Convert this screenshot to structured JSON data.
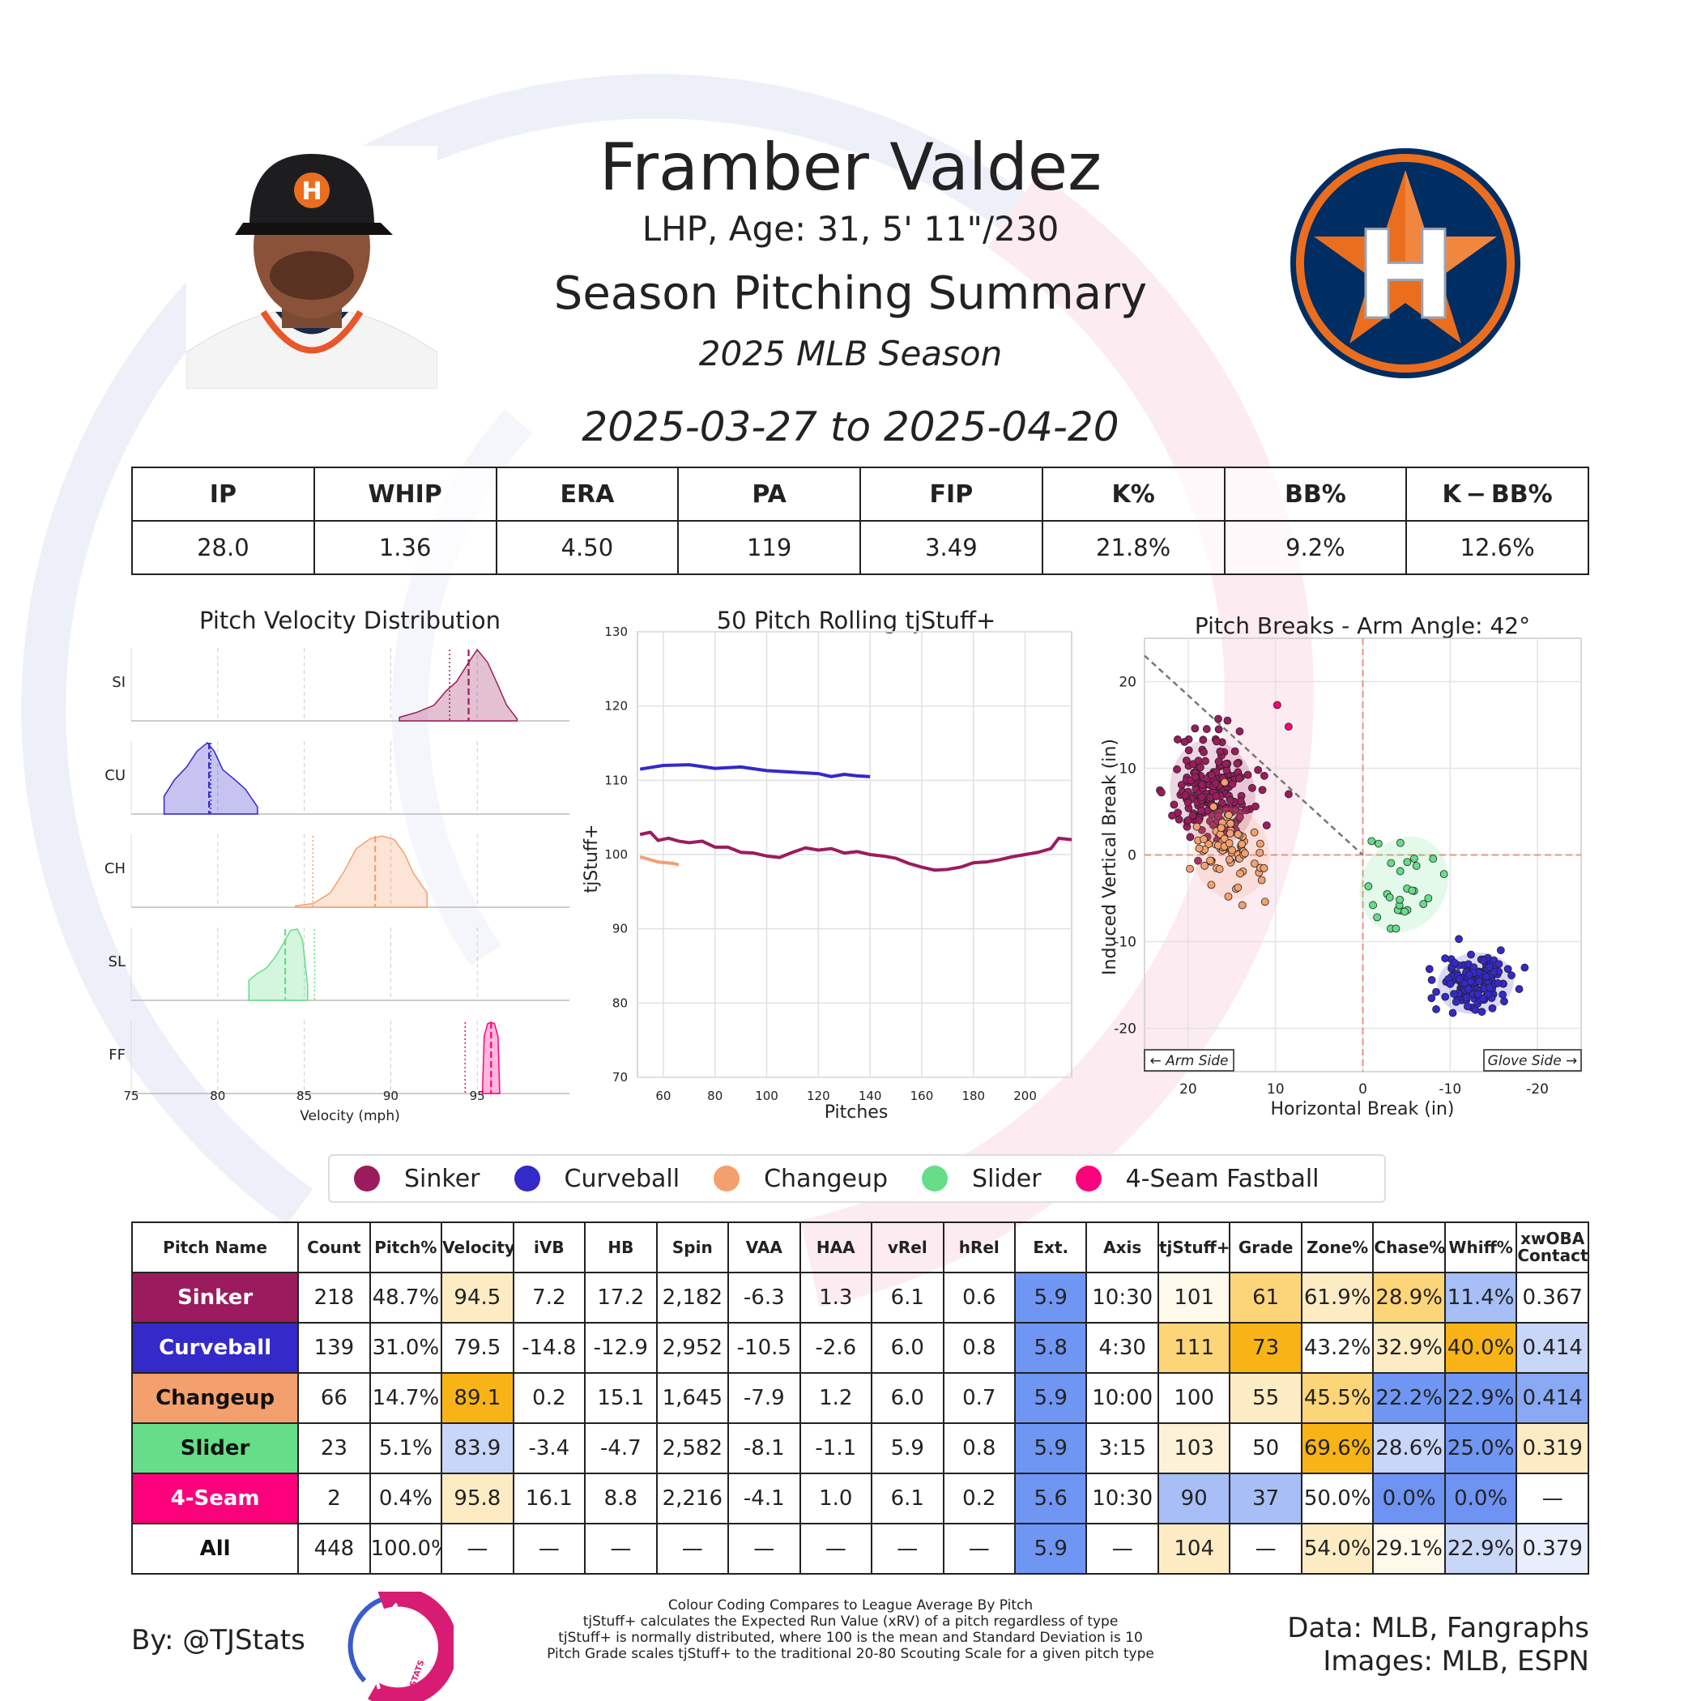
{
  "header": {
    "name": "Framber Valdez",
    "bio": "LHP, Age: 31, 5' 11\"/230",
    "title": "Season Pitching Summary",
    "season": "2025 MLB Season",
    "date_range": "2025-03-27 to 2025-04-20"
  },
  "summary": {
    "headers": [
      "IP",
      "WHIP",
      "ERA",
      "PA",
      "FIP",
      "K%",
      "BB%",
      "K − BB%"
    ],
    "values": [
      "28.0",
      "1.36",
      "4.50",
      "119",
      "3.49",
      "21.8%",
      "9.2%",
      "12.6%"
    ]
  },
  "colors": {
    "Sinker": "#9b1c5e",
    "Curveball": "#3429c9",
    "Changeup": "#f4a06e",
    "Slider": "#66dd88",
    "4-Seam Fastball": "#ff007d",
    "heat_high": "#f8b417",
    "heat_mid_high": "#fcd579",
    "heat_light_high": "#fdecc3",
    "heat_neutral": "#ffffff",
    "heat_light_low": "#c8d6f8",
    "heat_mid_low": "#a7bef6",
    "heat_low": "#7096f3"
  },
  "chart_data": [
    {
      "type": "area",
      "title": "Pitch Velocity Distribution",
      "xlabel": "Velocity (mph)",
      "xlim": [
        75,
        100
      ],
      "xticks": [
        "75",
        "80",
        "85",
        "90",
        "95"
      ],
      "series": [
        {
          "name": "SI",
          "color": "#9b1c5e",
          "mean": 94.5,
          "league_mean": 93.4,
          "x": [
            90.5,
            91.5,
            92.5,
            93.2,
            93.8,
            94.5,
            95.0,
            95.6,
            96.2,
            96.7,
            97.3
          ],
          "y": [
            0.05,
            0.12,
            0.22,
            0.42,
            0.55,
            0.82,
            1.0,
            0.82,
            0.5,
            0.22,
            0.03
          ]
        },
        {
          "name": "CU",
          "color": "#3429c9",
          "mean": 79.5,
          "league_mean": 79.6,
          "x": [
            76.9,
            77.5,
            78.2,
            78.8,
            79.4,
            79.8,
            80.3,
            81.0,
            81.6,
            82.3
          ],
          "y": [
            0.25,
            0.48,
            0.66,
            0.88,
            1.0,
            0.88,
            0.62,
            0.48,
            0.35,
            0.1
          ]
        },
        {
          "name": "CH",
          "color": "#f4a06e",
          "mean": 89.1,
          "league_mean": 85.5,
          "x": [
            84.5,
            85.5,
            86.5,
            87.3,
            88.0,
            88.8,
            89.5,
            90.2,
            90.8,
            91.3,
            92.1
          ],
          "y": [
            0.02,
            0.05,
            0.2,
            0.5,
            0.82,
            0.96,
            1.0,
            0.95,
            0.75,
            0.48,
            0.2
          ]
        },
        {
          "name": "SL",
          "color": "#66dd88",
          "mean": 83.9,
          "league_mean": 85.6,
          "x": [
            81.8,
            82.3,
            82.8,
            83.3,
            83.8,
            84.2,
            84.6,
            84.9,
            85.2
          ],
          "y": [
            0.28,
            0.38,
            0.45,
            0.6,
            0.8,
            0.98,
            1.0,
            0.85,
            0.2
          ]
        },
        {
          "name": "FF",
          "color": "#ff007d",
          "mean": 95.8,
          "league_mean": 94.3,
          "x": [
            95.3,
            95.4,
            95.6,
            95.8,
            96.0,
            96.2,
            96.3
          ],
          "y": [
            0.0,
            0.8,
            0.98,
            1.0,
            0.98,
            0.8,
            0.0
          ]
        }
      ]
    },
    {
      "type": "line",
      "title": "50 Pitch Rolling tjStuff+",
      "xlabel": "Pitches",
      "ylabel": "tjStuff+",
      "xlim": [
        50,
        218
      ],
      "ylim": [
        70,
        130
      ],
      "xticks": [
        "60",
        "80",
        "100",
        "120",
        "140",
        "160",
        "180",
        "200"
      ],
      "yticks": [
        "70",
        "80",
        "90",
        "100",
        "110",
        "120",
        "130"
      ],
      "series": [
        {
          "name": "Sinker",
          "color": "#9b1c5e",
          "x": [
            51,
            55,
            58,
            62,
            66,
            70,
            75,
            80,
            85,
            90,
            95,
            100,
            105,
            110,
            115,
            120,
            125,
            130,
            135,
            140,
            145,
            150,
            155,
            160,
            165,
            170,
            175,
            180,
            185,
            190,
            195,
            200,
            205,
            210,
            213,
            218
          ],
          "y": [
            102.7,
            103.0,
            101.9,
            102.2,
            101.8,
            101.6,
            101.8,
            101.0,
            101.0,
            100.3,
            100.2,
            99.8,
            99.6,
            100.3,
            100.9,
            100.6,
            100.8,
            100.2,
            100.4,
            100.0,
            99.8,
            99.5,
            98.8,
            98.3,
            97.9,
            98.0,
            98.3,
            98.9,
            99.0,
            99.3,
            99.7,
            100.0,
            100.3,
            100.8,
            102.2,
            102.0
          ]
        },
        {
          "name": "Curveball",
          "color": "#3429c9",
          "x": [
            51,
            60,
            70,
            80,
            90,
            100,
            110,
            120,
            125,
            130,
            135,
            140
          ],
          "y": [
            111.5,
            112.0,
            112.1,
            111.6,
            111.8,
            111.3,
            111.1,
            110.9,
            110.5,
            110.8,
            110.6,
            110.5
          ]
        },
        {
          "name": "Changeup",
          "color": "#f4a06e",
          "x": [
            51,
            55,
            58,
            61,
            64,
            66
          ],
          "y": [
            99.7,
            99.3,
            99.0,
            98.9,
            98.8,
            98.6
          ]
        }
      ]
    },
    {
      "type": "scatter",
      "title": "Pitch Breaks - Arm Angle: 42°",
      "xlabel": "Horizontal Break (in)",
      "ylabel": "Induced Vertical Break (in)",
      "xlim": [
        25,
        -25
      ],
      "ylim": [
        -25,
        25
      ],
      "xticks": [
        "20",
        "10",
        "0",
        "-10",
        "-20"
      ],
      "yticks": [
        "20",
        "10",
        "0",
        "-10",
        "-20"
      ],
      "annotations": {
        "arm_side": "← Arm Side",
        "glove_side": "Glove Side →"
      },
      "series": [
        {
          "name": "Sinker",
          "color": "#9b1c5e",
          "center": [
            17.2,
            7.2
          ],
          "spread": [
            2.2,
            2.8
          ],
          "count": 218,
          "outliers": [
            [
              15.5,
              15.5
            ],
            [
              16.5,
              14.5
            ],
            [
              12,
              9.8
            ],
            [
              11.5,
              7.5
            ],
            [
              20,
              4
            ]
          ]
        },
        {
          "name": "Curveball",
          "color": "#3429c9",
          "center": [
            -12.9,
            -14.8
          ],
          "spread": [
            2.0,
            1.6
          ],
          "count": 139,
          "outliers": [
            [
              -11,
              -9.7
            ],
            [
              -8.4,
              -17.8
            ],
            [
              -15.8,
              -11
            ]
          ]
        },
        {
          "name": "Changeup",
          "color": "#f4a06e",
          "center": [
            15.1,
            0.2
          ],
          "spread": [
            2.0,
            2.4
          ],
          "count": 66,
          "outliers": [
            [
              19.8,
              -1.6
            ],
            [
              13.8,
              -5.8
            ],
            [
              11.2,
              -5.4
            ],
            [
              15.4,
              -4.8
            ]
          ]
        },
        {
          "name": "Slider",
          "color": "#66dd88",
          "center": [
            -4.7,
            -3.4
          ],
          "spread": [
            2.2,
            2.6
          ],
          "count": 23,
          "outliers": [
            [
              -1.0,
              1.6
            ],
            [
              -1.8,
              1.3
            ],
            [
              -3.2,
              -8.5
            ],
            [
              -3.8,
              -8.5
            ],
            [
              -7.5,
              -5
            ]
          ]
        },
        {
          "name": "4-Seam Fastball",
          "color": "#ff007d",
          "points": [
            [
              9.8,
              17.3
            ],
            [
              8.5,
              14.8
            ]
          ]
        }
      ]
    }
  ],
  "legend": [
    "Sinker",
    "Curveball",
    "Changeup",
    "Slider",
    "4-Seam Fastball"
  ],
  "pitch_table": {
    "headers": [
      "Pitch Name",
      "Count",
      "Pitch%",
      "Velocity",
      "iVB",
      "HB",
      "Spin",
      "VAA",
      "HAA",
      "vRel",
      "hRel",
      "Ext.",
      "Axis",
      "tjStuff+",
      "Grade",
      "Zone%",
      "Chase%",
      "Whiff%",
      "xwOBA Contact"
    ],
    "rows": [
      {
        "name": "Sinker",
        "color": "#9b1c5e",
        "text": "#ffffff",
        "cells": [
          "218",
          "48.7%",
          "94.5",
          "7.2",
          "17.2",
          "2,182",
          "-6.3",
          "1.3",
          "6.1",
          "0.6",
          "5.9",
          "10:30",
          "101",
          "61",
          "61.9%",
          "28.9%",
          "11.4%",
          "0.367"
        ],
        "heat": [
          "",
          "",
          "#fdecc3",
          "",
          "",
          "",
          "",
          "",
          "",
          "",
          "#7096f3",
          "",
          "#fff9eb",
          "#fcd579",
          "#fdecc3",
          "#fcd579",
          "#a7bef6",
          ""
        ]
      },
      {
        "name": "Curveball",
        "color": "#3429c9",
        "text": "#ffffff",
        "cells": [
          "139",
          "31.0%",
          "79.5",
          "-14.8",
          "-12.9",
          "2,952",
          "-10.5",
          "-2.6",
          "6.0",
          "0.8",
          "5.8",
          "4:30",
          "111",
          "73",
          "43.2%",
          "32.9%",
          "40.0%",
          "0.414"
        ],
        "heat": [
          "",
          "",
          "",
          "",
          "",
          "",
          "",
          "",
          "",
          "",
          "#7096f3",
          "",
          "#fcd579",
          "#f8b417",
          "",
          "#fdecc3",
          "#f8b417",
          "#c8d6f8"
        ]
      },
      {
        "name": "Changeup",
        "color": "#f4a06e",
        "text": "#111111",
        "cells": [
          "66",
          "14.7%",
          "89.1",
          "0.2",
          "15.1",
          "1,645",
          "-7.9",
          "1.2",
          "6.0",
          "0.7",
          "5.9",
          "10:00",
          "100",
          "55",
          "45.5%",
          "22.2%",
          "22.9%",
          "0.414"
        ],
        "heat": [
          "",
          "",
          "#f8b417",
          "",
          "",
          "",
          "",
          "",
          "",
          "",
          "#7096f3",
          "",
          "",
          "#fdecc3",
          "#fcd579",
          "#7096f3",
          "#7096f3",
          "#8aa9f4"
        ]
      },
      {
        "name": "Slider",
        "color": "#66dd88",
        "text": "#111111",
        "cells": [
          "23",
          "5.1%",
          "83.9",
          "-3.4",
          "-4.7",
          "2,582",
          "-8.1",
          "-1.1",
          "5.9",
          "0.8",
          "5.9",
          "3:15",
          "103",
          "50",
          "69.6%",
          "28.6%",
          "25.0%",
          "0.319"
        ],
        "heat": [
          "",
          "",
          "#c8d6f8",
          "",
          "",
          "",
          "",
          "",
          "",
          "",
          "#7096f3",
          "",
          "#fdf2d8",
          "",
          "#f8b417",
          "#c8d6f8",
          "#7096f3",
          "#fdecc3"
        ]
      },
      {
        "name": "4-Seam",
        "color": "#ff007d",
        "text": "#ffffff",
        "cells": [
          "2",
          "0.4%",
          "95.8",
          "16.1",
          "8.8",
          "2,216",
          "-4.1",
          "1.0",
          "6.1",
          "0.2",
          "5.6",
          "10:30",
          "90",
          "37",
          "50.0%",
          "0.0%",
          "0.0%",
          "—"
        ],
        "heat": [
          "",
          "",
          "#fdecc3",
          "",
          "",
          "",
          "",
          "",
          "",
          "",
          "#7096f3",
          "",
          "#a7bef6",
          "#a7bef6",
          "",
          "#6e93f2",
          "#6e93f2",
          ""
        ]
      },
      {
        "name": "All",
        "color": "#ffffff",
        "text": "#111111",
        "cells": [
          "448",
          "100.0%",
          "—",
          "—",
          "—",
          "—",
          "—",
          "—",
          "—",
          "—",
          "5.9",
          "—",
          "104",
          "—",
          "54.0%",
          "29.1%",
          "22.9%",
          "0.379"
        ],
        "heat": [
          "",
          "",
          "",
          "",
          "",
          "",
          "",
          "",
          "",
          "",
          "#7096f3",
          "",
          "#fdecc3",
          "",
          "#fdecc3",
          "#fff9eb",
          "#c8d6f8",
          "#e8eefb"
        ]
      }
    ]
  },
  "footer": {
    "by": "By: @TJStats",
    "logo_text": "STATS",
    "notes": [
      "Colour Coding Compares to League Average By Pitch",
      "tjStuff+ calculates the Expected Run Value (xRV) of a pitch regardless of type",
      "tjStuff+ is normally distributed, where 100 is the mean and Standard Deviation is 10",
      "Pitch Grade scales tjStuff+ to the traditional 20-80 Scouting Scale for a given pitch type"
    ],
    "data_source": "Data: MLB, Fangraphs",
    "images_source": "Images: MLB, ESPN"
  },
  "team_logo": {
    "letter": "H"
  }
}
